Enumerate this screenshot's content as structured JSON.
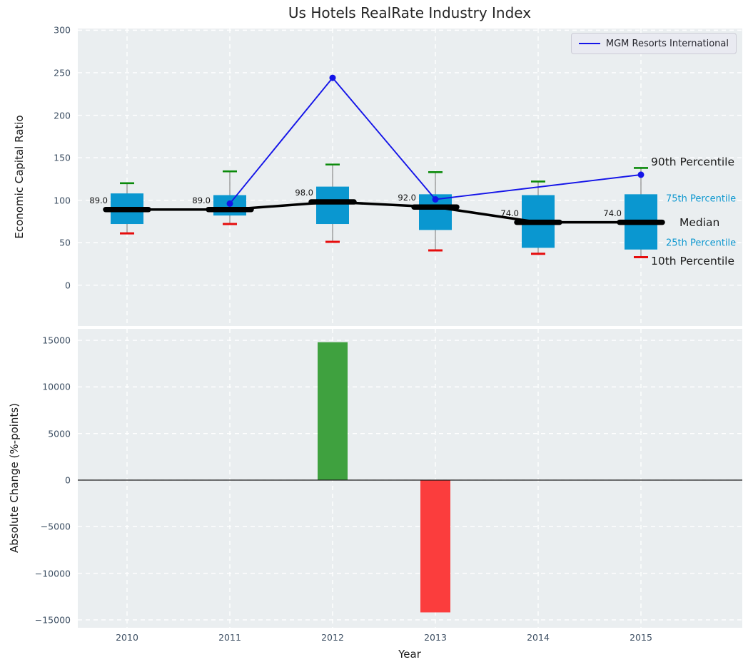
{
  "figure_title": "Us Hotels RealRate Industry Index",
  "colors": {
    "figure_background": "#ffffff",
    "plot_background": "#eaeef0",
    "gridline": "#ffffff",
    "box_fill": "#0a97d0",
    "p90_cap": "#0a8a0a",
    "p10_cap": "#e60c0c",
    "whisker": "#909090",
    "median_line": "#000000",
    "mgm_line": "#1414e8",
    "bar_positive": "#3fa13f",
    "bar_negative": "#fb3d3d",
    "tick_text": "#3d4f63",
    "annotation_blue": "#0d97cf"
  },
  "chart_data": [
    {
      "id": "industry-index-percentile-chart",
      "type": "box",
      "title": "Us Hotels RealRate Industry Index",
      "ylabel": "Economic Capital Ratio",
      "categories": [
        "2010",
        "2011",
        "2012",
        "2013",
        "2014",
        "2015"
      ],
      "yticks": [
        0,
        50,
        100,
        150,
        200,
        250,
        300
      ],
      "ylim": [
        -48,
        302
      ],
      "grid": "white dashed, horizontal and vertical",
      "legend_position": "upper right",
      "percentiles": {
        "p10": [
          61,
          72,
          51,
          41,
          37,
          33
        ],
        "p25": [
          72,
          82,
          72,
          65,
          44,
          42
        ],
        "median": [
          89,
          89,
          98,
          92,
          74,
          74
        ],
        "p75": [
          108,
          106,
          116,
          107,
          106,
          107
        ],
        "p90": [
          120,
          134,
          142,
          133,
          122,
          138
        ]
      },
      "median_labels": [
        "89.0",
        "89.0",
        "98.0",
        "92.0",
        "74.0",
        "74.0"
      ],
      "line_series": {
        "name": "MGM Resorts International",
        "x": [
          "2011",
          "2012",
          "2013",
          "2015"
        ],
        "values": [
          96,
          244,
          101,
          130
        ]
      },
      "right_annotations": [
        {
          "label": "90th Percentile",
          "value": 145,
          "style": "big",
          "x": 912
        },
        {
          "label": "75th Percentile",
          "value": 101,
          "style": "small",
          "x": 933
        },
        {
          "label": "Median",
          "value": 74,
          "style": "big",
          "x": 952
        },
        {
          "label": "25th Percentile",
          "value": 49,
          "style": "small",
          "x": 933
        },
        {
          "label": "10th Percentile",
          "value": 28,
          "style": "big",
          "x": 912
        }
      ]
    },
    {
      "id": "absolute-change-bars",
      "type": "bar",
      "ylabel": "Absolute Change (%-points)",
      "xlabel": "Year",
      "categories": [
        "2010",
        "2011",
        "2012",
        "2013",
        "2014",
        "2015"
      ],
      "values": [
        0,
        0,
        14800,
        -14200,
        0,
        0
      ],
      "yticks": [
        -15000,
        -10000,
        -5000,
        0,
        5000,
        10000,
        15000
      ],
      "ylim": [
        -15850,
        16230
      ],
      "grid": "white dashed, horizontal and vertical",
      "zero_line": true
    }
  ]
}
